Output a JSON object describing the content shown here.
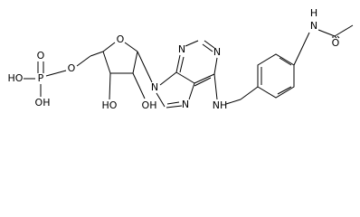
{
  "atoms": {
    "phosphoryl_o": "O",
    "phosphate_ho": "HO",
    "phosphorus": "P",
    "phosphate_oh": "OH",
    "ester_o": "O",
    "ring_o": "O",
    "ribose_ho": "HO",
    "ribose_oh": "OH",
    "n9": "N",
    "n7": "N",
    "n3": "N",
    "n1": "N",
    "n6": "NH",
    "amide_h": "H",
    "amide_n": "N",
    "carbonyl_o": "O"
  }
}
